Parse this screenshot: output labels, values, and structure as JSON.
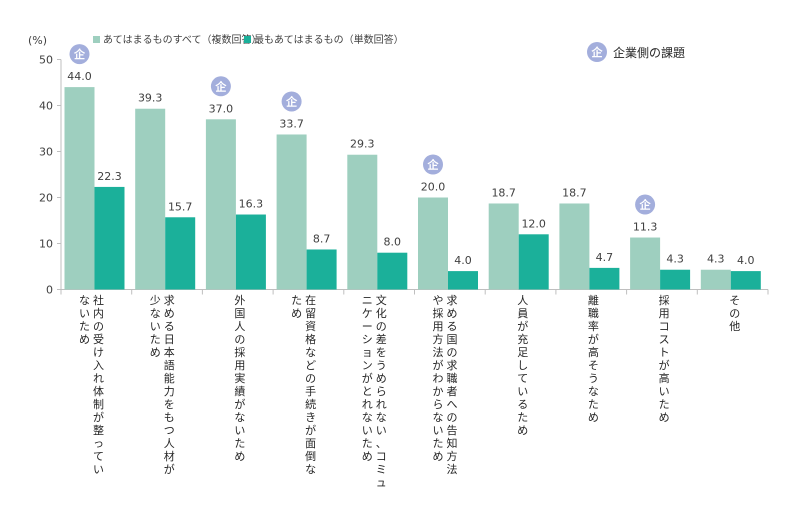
{
  "chart_data": {
    "type": "bar",
    "ylabel": "(%)",
    "ylim": [
      0,
      50
    ],
    "yticks": [
      0,
      10,
      20,
      30,
      40,
      50
    ],
    "grid": false,
    "legend_position": "top",
    "categories": [
      [
        "社内の受け入れ体制が整ってい",
        "ないため"
      ],
      [
        "求める日本語能力をもつ人材が",
        "少ないため"
      ],
      [
        "外国人の採用実績がないため"
      ],
      [
        "在留資格などの手続きが面倒な",
        "ため"
      ],
      [
        "文化の差をうめられない、コミュ",
        "ニケーションがとれないため"
      ],
      [
        "求める国の求職者への告知方法",
        "や採用方法がわからないため"
      ],
      [
        "人員が充足しているため"
      ],
      [
        "離職率が高そうなため"
      ],
      [
        "採用コストが高いため"
      ],
      [
        "その他"
      ]
    ],
    "series": [
      {
        "name": "あてはまるものすべて（複数回答）",
        "color": "#9ecfbf",
        "values": [
          44.0,
          39.3,
          37.0,
          33.7,
          29.3,
          20.0,
          18.7,
          18.7,
          11.3,
          4.3
        ]
      },
      {
        "name": "最もあてはまるもの（単数回答）",
        "color": "#1bb09a",
        "values": [
          22.3,
          15.7,
          16.3,
          8.7,
          8.0,
          4.0,
          12.0,
          4.7,
          4.3,
          4.0
        ]
      }
    ],
    "company_badge": {
      "text": "企",
      "color": "#a3aedc",
      "category_indices": [
        0,
        2,
        3,
        5,
        8
      ],
      "legend_label": "企業側の課題"
    }
  }
}
